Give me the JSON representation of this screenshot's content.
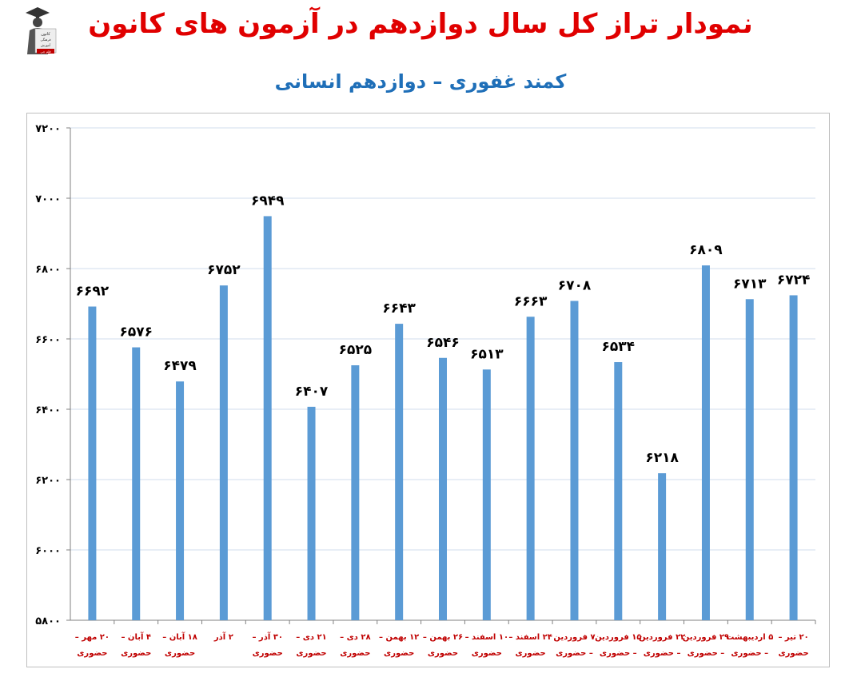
{
  "logo": {
    "lines": [
      "کانون",
      "فرهنگی",
      "آموزش",
      "قلم چی"
    ]
  },
  "title": "نمودار تراز کل سال دوازدهم در آزمون های کانون",
  "subtitle": "کمند غفوری – دوازدهم انسانی",
  "chart_data": {
    "type": "bar",
    "title": "نمودار تراز کل سال دوازدهم در آزمون های کانون",
    "subtitle": "کمند غفوری – دوازدهم انسانی",
    "categories": [
      [
        "۲۰ مهر –",
        "حضوری"
      ],
      [
        "۴ آبان –",
        "حضوری"
      ],
      [
        "۱۸ آبان –",
        "حضوری"
      ],
      [
        "۲ آذر",
        ""
      ],
      [
        "۳۰ آذر –",
        "حضوری"
      ],
      [
        "۲۱ دی –",
        "حضوری"
      ],
      [
        "۲۸ دی –",
        "حضوری"
      ],
      [
        "۱۲ بهمن –",
        "حضوری"
      ],
      [
        "۲۶ بهمن –",
        "حضوری"
      ],
      [
        "۱۰ اسفند –",
        "حضوری"
      ],
      [
        "۲۴ اسفند –",
        "حضوری"
      ],
      [
        "۷ فروردین",
        "– حضوری"
      ],
      [
        "۱۵ فروردین",
        "– حضوری"
      ],
      [
        "۲۲ فروردین",
        "– حضوری"
      ],
      [
        "۲۹ فروردین",
        "– حضوری"
      ],
      [
        "۵ اردیبهشت",
        "– حضوری"
      ],
      [
        "۲۰ تیر –",
        "حضوری"
      ]
    ],
    "values": [
      6692,
      6576,
      6479,
      6752,
      6949,
      6407,
      6525,
      6643,
      6546,
      6513,
      6663,
      6708,
      6534,
      6218,
      6809,
      6713,
      6724
    ],
    "value_labels": [
      "۶۶۹۲",
      "۶۵۷۶",
      "۶۴۷۹",
      "۶۷۵۲",
      "۶۹۴۹",
      "۶۴۰۷",
      "۶۵۲۵",
      "۶۶۴۳",
      "۶۵۴۶",
      "۶۵۱۳",
      "۶۶۶۳",
      "۶۷۰۸",
      "۶۵۳۴",
      "۶۲۱۸",
      "۶۸۰۹",
      "۶۷۱۳",
      "۶۷۲۴"
    ],
    "yticks": [
      5800,
      6000,
      6200,
      6400,
      6600,
      6800,
      7000,
      7200
    ],
    "ytick_labels": [
      "۵۸۰۰",
      "۶۰۰۰",
      "۶۲۰۰",
      "۶۴۰۰",
      "۶۶۰۰",
      "۶۸۰۰",
      "۷۰۰۰",
      "۷۲۰۰"
    ],
    "ylim": [
      5800,
      7200
    ],
    "grid": true,
    "bar_color": "#5b9bd5",
    "grid_color": "#d9e3f0",
    "label_color": "#c00000"
  }
}
